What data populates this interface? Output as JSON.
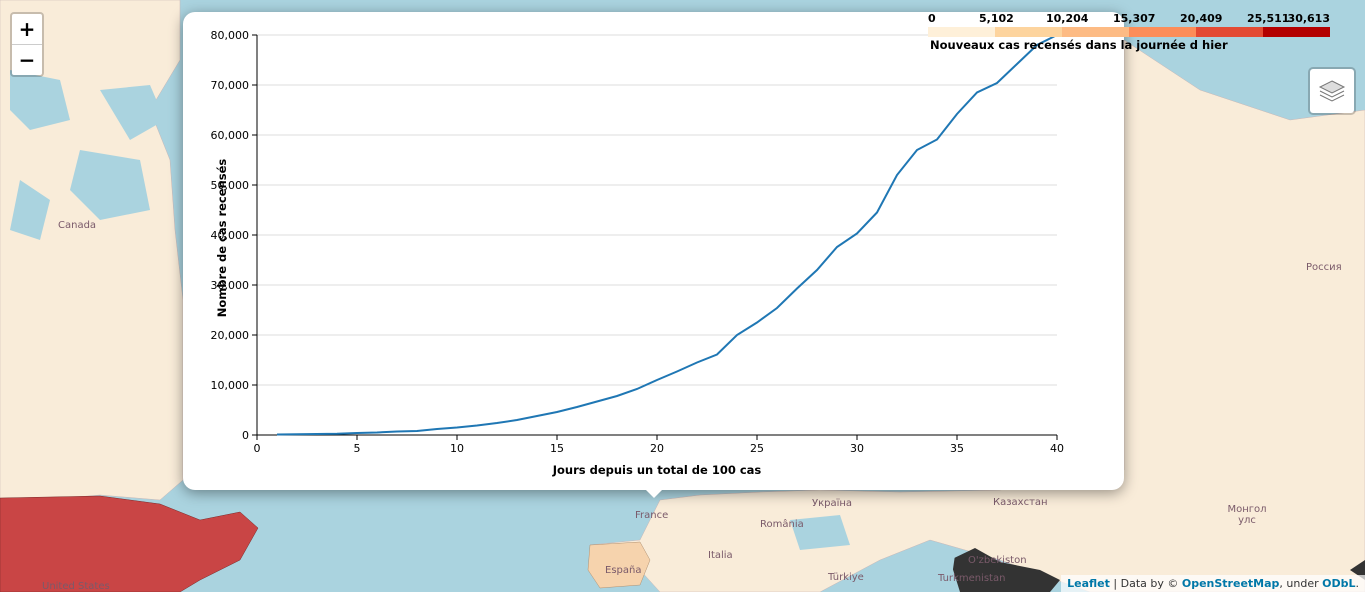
{
  "map": {
    "zoom_in": "+",
    "zoom_out": "−",
    "labels": {
      "canada": "Canada",
      "russia": "Россия",
      "united_states": "United States",
      "france": "France",
      "espana": "España",
      "ukraina": "Україна",
      "romania": "România",
      "kazakhstan": "Казахстан",
      "mongolia": "Монгол улс",
      "turkmenistan": "Turkmenistan",
      "uzbekistan": "O'zbekiston",
      "turkiye": "Türkiye",
      "italia": "Italia"
    },
    "colors": {
      "water": "#aad3df",
      "land": "#f9ecd9",
      "us_fill": "#c94545",
      "spain_fill": "#f6d3ad",
      "dark_region": "#333333"
    }
  },
  "attribution": {
    "leaflet": "Leaflet",
    "sep": " | Data by © ",
    "osm": "OpenStreetMap",
    "under": ", under ",
    "odbl": "ODbL",
    "end": "."
  },
  "legend": {
    "ticks": [
      "0",
      "5,102",
      "10,204",
      "15,307",
      "20,409",
      "25,511",
      "30,613"
    ],
    "title": "Nouveaux cas recensés dans la journée d hier",
    "colors": [
      "#fef0d9",
      "#fdd49e",
      "#fdbb84",
      "#fc8d59",
      "#e34a33",
      "#b30000"
    ]
  },
  "chart_data": {
    "type": "line",
    "xlabel": "Jours depuis un total de 100  cas",
    "ylabel": "Nombre de cas recensés",
    "xlim": [
      0,
      40
    ],
    "ylim": [
      0,
      80000
    ],
    "xticks": [
      0,
      5,
      10,
      15,
      20,
      25,
      30,
      35,
      40
    ],
    "xtick_labels": [
      "0",
      "5",
      "10",
      "15",
      "20",
      "25",
      "30",
      "35",
      "40"
    ],
    "yticks": [
      0,
      10000,
      20000,
      30000,
      40000,
      50000,
      60000,
      70000,
      80000
    ],
    "ytick_labels": [
      "0",
      "10,000",
      "20,000",
      "30,000",
      "40,000",
      "50,000",
      "60,000",
      "70,000",
      "80,000"
    ],
    "grid": true,
    "line_color": "#1f77b4",
    "series": [
      {
        "name": "cas",
        "x": [
          1,
          2,
          3,
          4,
          5,
          6,
          7,
          8,
          9,
          10,
          11,
          12,
          13,
          14,
          15,
          16,
          17,
          18,
          19,
          20,
          21,
          22,
          23,
          24,
          25,
          26,
          27,
          28,
          29,
          30,
          31,
          32,
          33,
          34,
          35,
          36,
          37,
          38,
          39,
          40
        ],
        "values": [
          100,
          150,
          200,
          250,
          400,
          500,
          700,
          800,
          1200,
          1500,
          1900,
          2400,
          3000,
          3800,
          4600,
          5600,
          6700,
          7800,
          9200,
          11000,
          12700,
          14500,
          16100,
          20000,
          22500,
          25400,
          29300,
          33000,
          37600,
          40300,
          44500,
          52000,
          57000,
          59100,
          64200,
          68500,
          70400,
          74200,
          78000,
          80000
        ]
      }
    ]
  }
}
